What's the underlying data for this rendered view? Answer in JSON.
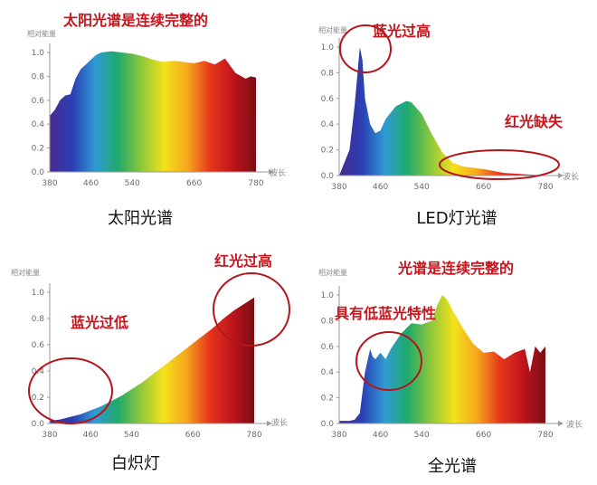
{
  "colors": {
    "annotation": "#c8141c",
    "circle": "#b3161d",
    "axis": "#9a9a9a",
    "spectrum": [
      "#4a2a8f",
      "#2a3fb5",
      "#2f9bd3",
      "#1faa6a",
      "#8fc73b",
      "#f3e21b",
      "#f6a81c",
      "#e8371c",
      "#c0141d",
      "#7a0d12"
    ]
  },
  "chart_data": [
    {
      "type": "area",
      "caption": "太阳光谱",
      "annotations": [
        "太阳光谱是连续完整的"
      ],
      "ylabel": "相对能量",
      "xlabel": "波长",
      "xlim": [
        380,
        780
      ],
      "ylim": [
        0,
        1.0
      ],
      "xticks": [
        380,
        460,
        540,
        660,
        780
      ],
      "yticks": [
        "0.0",
        "0.2",
        "0.4",
        "0.6",
        "0.8",
        "1.0"
      ],
      "x": [
        380,
        390,
        400,
        410,
        420,
        430,
        440,
        450,
        460,
        470,
        480,
        500,
        520,
        540,
        560,
        580,
        600,
        620,
        640,
        660,
        680,
        700,
        720,
        740,
        760,
        770,
        780
      ],
      "y": [
        0.47,
        0.52,
        0.6,
        0.64,
        0.65,
        0.78,
        0.86,
        0.9,
        0.94,
        0.98,
        1.0,
        1.01,
        1.0,
        0.99,
        0.97,
        0.94,
        0.92,
        0.93,
        0.92,
        0.91,
        0.93,
        0.9,
        0.95,
        0.83,
        0.78,
        0.8,
        0.79
      ]
    },
    {
      "type": "area",
      "caption": "LED灯光谱",
      "annotations": [
        "蓝光过高",
        "红光缺失"
      ],
      "ylabel": "相对能量",
      "xlabel": "波长",
      "xlim": [
        380,
        780
      ],
      "ylim": [
        0,
        1.0
      ],
      "xticks": [
        380,
        460,
        540,
        660,
        780
      ],
      "yticks": [
        "0.0",
        "0.2",
        "0.4",
        "0.6",
        "0.8",
        "1.0"
      ],
      "x": [
        380,
        400,
        410,
        420,
        425,
        430,
        440,
        450,
        460,
        470,
        490,
        510,
        520,
        540,
        560,
        580,
        600,
        620,
        660,
        700,
        740,
        780
      ],
      "y": [
        0.0,
        0.2,
        0.55,
        1.0,
        0.9,
        0.6,
        0.4,
        0.33,
        0.35,
        0.44,
        0.54,
        0.58,
        0.57,
        0.48,
        0.32,
        0.18,
        0.1,
        0.07,
        0.05,
        0.02,
        0.01,
        0.0
      ]
    },
    {
      "type": "area",
      "caption": "白炽灯",
      "annotations": [
        "红光过高",
        "蓝光过低"
      ],
      "ylabel": "相对能量",
      "xlabel": "波长",
      "xlim": [
        380,
        780
      ],
      "ylim": [
        0,
        1.0
      ],
      "xticks": [
        380,
        460,
        540,
        660,
        780
      ],
      "yticks": [
        "0.0",
        "0.2",
        "0.4",
        "0.6",
        "0.8",
        "1.0"
      ],
      "x": [
        380,
        400,
        420,
        440,
        460,
        480,
        500,
        520,
        540,
        560,
        580,
        600,
        620,
        640,
        660,
        680,
        700,
        720,
        740,
        760,
        780
      ],
      "y": [
        0.02,
        0.03,
        0.05,
        0.07,
        0.1,
        0.13,
        0.17,
        0.21,
        0.26,
        0.31,
        0.37,
        0.43,
        0.49,
        0.55,
        0.61,
        0.67,
        0.73,
        0.8,
        0.86,
        0.91,
        0.96
      ]
    },
    {
      "type": "area",
      "caption": "全光谱",
      "annotations": [
        "光谱是连续完整的",
        "具有低蓝光特性"
      ],
      "ylabel": "相对能量",
      "xlabel": "波长",
      "xlim": [
        380,
        780
      ],
      "ylim": [
        0,
        1.0
      ],
      "xticks": [
        380,
        460,
        540,
        660,
        780
      ],
      "yticks": [
        "0.0",
        "0.2",
        "0.4",
        "0.6",
        "0.8",
        "1.0"
      ],
      "x": [
        380,
        400,
        410,
        420,
        430,
        440,
        445,
        450,
        460,
        470,
        480,
        500,
        520,
        540,
        560,
        570,
        580,
        590,
        600,
        620,
        640,
        660,
        680,
        700,
        720,
        740,
        750,
        760,
        770,
        780
      ],
      "y": [
        0.02,
        0.02,
        0.03,
        0.08,
        0.4,
        0.58,
        0.52,
        0.5,
        0.55,
        0.5,
        0.58,
        0.7,
        0.78,
        0.77,
        0.8,
        0.92,
        1.0,
        0.96,
        0.88,
        0.74,
        0.62,
        0.55,
        0.56,
        0.5,
        0.55,
        0.58,
        0.4,
        0.6,
        0.55,
        0.6
      ]
    }
  ]
}
